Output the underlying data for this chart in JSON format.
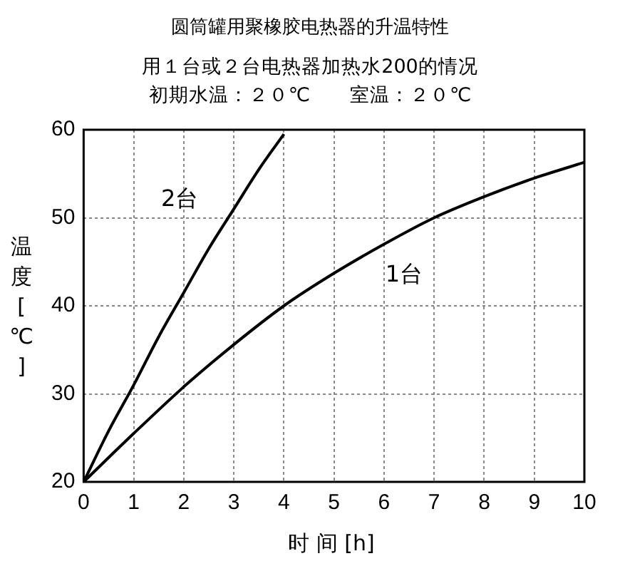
{
  "chart_data": {
    "type": "line",
    "title": "圆筒罐用聚橡胶电热器的升温特性",
    "subtitle": "用１台或２台电热器加热水200的情况",
    "annotations": [
      "初期水温：２０℃　　室温：２０℃"
    ],
    "xlabel": "时 间 [h]",
    "ylabel": "温度[℃]",
    "xlim": [
      0,
      10
    ],
    "xticks": [
      0,
      1,
      2,
      3,
      4,
      5,
      6,
      7,
      8,
      9,
      10
    ],
    "ylim": [
      20,
      60
    ],
    "yticks": [
      20,
      30,
      40,
      50,
      60
    ],
    "grid": true,
    "legend": false,
    "marker": "none",
    "line_style": "solid",
    "series": [
      {
        "name": "1台",
        "color": "#000000",
        "x": [
          0,
          1,
          2,
          3,
          4,
          5,
          6,
          7,
          8,
          9,
          10
        ],
        "values": [
          20,
          25.5,
          30.8,
          35.6,
          40,
          43.7,
          47,
          50,
          52.4,
          54.5,
          56.3
        ]
      },
      {
        "name": "2台",
        "color": "#000000",
        "x": [
          0,
          0.5,
          1,
          1.5,
          2,
          2.5,
          3,
          3.5,
          4
        ],
        "values": [
          20,
          25.8,
          31,
          36.5,
          41.5,
          46.5,
          51,
          55.5,
          59.5
        ]
      }
    ]
  }
}
